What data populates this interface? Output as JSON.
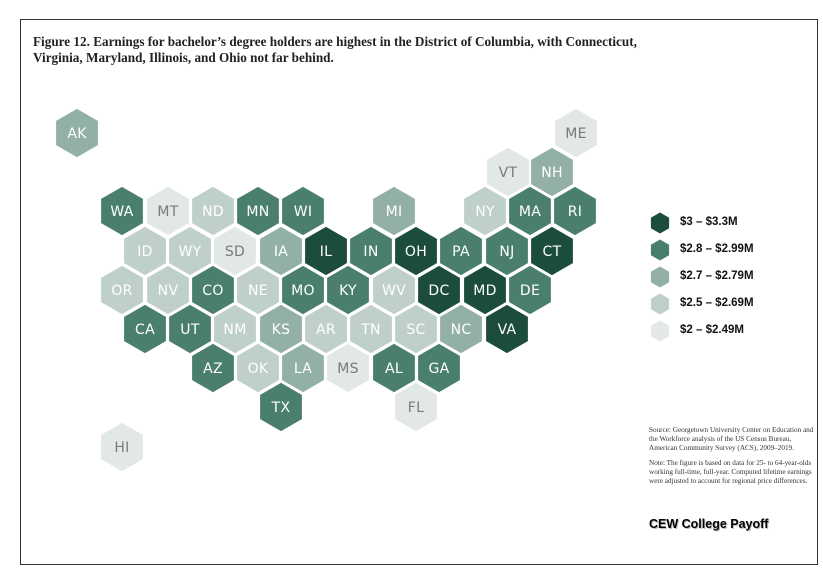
{
  "title": "Figure 12. Earnings for bachelor’s degree holders are highest in the District of Columbia, with Connecticut, Virginia, Maryland, Illinois, and Ohio not far behind.",
  "colors": {
    "tier1": "#1c4d3c",
    "tier2": "#4a7f6c",
    "tier3": "#93b0a6",
    "tier4": "#bfd0c9",
    "tier5": "#e2e8e5"
  },
  "legend": [
    {
      "tier": 1,
      "label": "$3 – $3.3M"
    },
    {
      "tier": 2,
      "label": "$2.8 – $2.99M"
    },
    {
      "tier": 3,
      "label": "$2.7 – $2.79M"
    },
    {
      "tier": 4,
      "label": "$2.5 – $2.69M"
    },
    {
      "tier": 5,
      "label": "$2 – $2.49M"
    }
  ],
  "states": [
    {
      "abbr": "AK",
      "tier": 3
    },
    {
      "abbr": "ME",
      "tier": 5
    },
    {
      "abbr": "VT",
      "tier": 5
    },
    {
      "abbr": "NH",
      "tier": 3
    },
    {
      "abbr": "WA",
      "tier": 2
    },
    {
      "abbr": "MT",
      "tier": 5
    },
    {
      "abbr": "ND",
      "tier": 4
    },
    {
      "abbr": "MN",
      "tier": 2
    },
    {
      "abbr": "WI",
      "tier": 2
    },
    {
      "abbr": "MI",
      "tier": 3
    },
    {
      "abbr": "NY",
      "tier": 4
    },
    {
      "abbr": "MA",
      "tier": 2
    },
    {
      "abbr": "RI",
      "tier": 2
    },
    {
      "abbr": "ID",
      "tier": 4
    },
    {
      "abbr": "WY",
      "tier": 4
    },
    {
      "abbr": "SD",
      "tier": 5
    },
    {
      "abbr": "IA",
      "tier": 3
    },
    {
      "abbr": "IL",
      "tier": 1
    },
    {
      "abbr": "IN",
      "tier": 2
    },
    {
      "abbr": "OH",
      "tier": 1
    },
    {
      "abbr": "PA",
      "tier": 2
    },
    {
      "abbr": "NJ",
      "tier": 2
    },
    {
      "abbr": "CT",
      "tier": 1
    },
    {
      "abbr": "OR",
      "tier": 4
    },
    {
      "abbr": "NV",
      "tier": 4
    },
    {
      "abbr": "CO",
      "tier": 2
    },
    {
      "abbr": "NE",
      "tier": 4
    },
    {
      "abbr": "MO",
      "tier": 2
    },
    {
      "abbr": "KY",
      "tier": 2
    },
    {
      "abbr": "WV",
      "tier": 4
    },
    {
      "abbr": "DC",
      "tier": 1
    },
    {
      "abbr": "MD",
      "tier": 1
    },
    {
      "abbr": "DE",
      "tier": 2
    },
    {
      "abbr": "CA",
      "tier": 2
    },
    {
      "abbr": "UT",
      "tier": 2
    },
    {
      "abbr": "NM",
      "tier": 4
    },
    {
      "abbr": "KS",
      "tier": 3
    },
    {
      "abbr": "AR",
      "tier": 4
    },
    {
      "abbr": "TN",
      "tier": 4
    },
    {
      "abbr": "SC",
      "tier": 4
    },
    {
      "abbr": "NC",
      "tier": 3
    },
    {
      "abbr": "VA",
      "tier": 1
    },
    {
      "abbr": "AZ",
      "tier": 2
    },
    {
      "abbr": "OK",
      "tier": 4
    },
    {
      "abbr": "LA",
      "tier": 3
    },
    {
      "abbr": "MS",
      "tier": 5
    },
    {
      "abbr": "AL",
      "tier": 2
    },
    {
      "abbr": "GA",
      "tier": 2
    },
    {
      "abbr": "TX",
      "tier": 2
    },
    {
      "abbr": "FL",
      "tier": 5
    },
    {
      "abbr": "HI",
      "tier": 5
    }
  ],
  "source": "Source: Georgetown University Center on Education and the Workforce analysis of the US Census Bureau, American Community Survey (ACS), 2009–2019.",
  "note": "Note: The figure is based on data for 25- to 64-year-olds working full-time, full-year. Computed lifetime earnings were adjusted to account for regional price differences.",
  "brand": "CEW College Payoff"
}
